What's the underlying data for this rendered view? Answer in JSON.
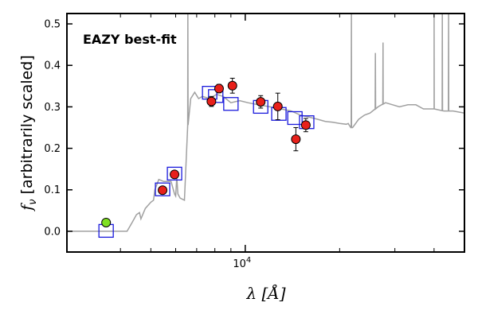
{
  "chart_data": {
    "type": "scatter",
    "title": "",
    "annotation": {
      "text": "EAZY best-fit",
      "color": "#ff0000",
      "placement": "top-left"
    },
    "xlabel": "λ [Å]",
    "ylabel_symbol": "f",
    "ylabel_sub": "ν",
    "ylabel_text": " [arbitrarily scaled]",
    "xscale": "log",
    "xlim": [
      2700,
      50000
    ],
    "ylim": [
      -0.05,
      0.525
    ],
    "yticks": [
      0.0,
      0.1,
      0.2,
      0.3,
      0.4,
      0.5
    ],
    "ytick_labels": [
      "0.0",
      "0.1",
      "0.2",
      "0.3",
      "0.4",
      "0.5"
    ],
    "xtick_label": {
      "base": "10",
      "exp": "4",
      "value": 10000
    },
    "xticks_major": [
      10000
    ],
    "xticks_minor": [
      4000,
      5000,
      6000,
      7000,
      8000,
      9000,
      20000,
      30000,
      40000
    ],
    "grid": false,
    "colors": {
      "template": "#a0a0a0",
      "observed": "#e8201a",
      "upper_limit": "#80e020",
      "model": "#1a1adc"
    },
    "template_spectrum": {
      "x": [
        2700,
        4200,
        4350,
        4500,
        4600,
        4650,
        4800,
        5000,
        5100,
        5150,
        5300,
        5500,
        5800,
        5950,
        6000,
        6050,
        6100,
        6200,
        6400,
        6550,
        6700,
        6900,
        7100,
        7300,
        7700,
        8100,
        8500,
        9000,
        9600,
        10200,
        11000,
        12000,
        13000,
        14000,
        15000,
        16000,
        17000,
        18000,
        19000,
        20000,
        21000,
        21300,
        21700,
        22000,
        23000,
        24000,
        25000,
        26500,
        28000,
        29500,
        31000,
        33000,
        35000,
        37000,
        40000,
        43000,
        46000,
        50000
      ],
      "y": [
        0.0,
        0.0,
        0.02,
        0.04,
        0.045,
        0.03,
        0.055,
        0.07,
        0.075,
        0.1,
        0.125,
        0.12,
        0.12,
        0.09,
        0.085,
        0.13,
        0.09,
        0.08,
        0.075,
        0.25,
        0.32,
        0.335,
        0.32,
        0.325,
        0.32,
        0.33,
        0.325,
        0.31,
        0.315,
        0.31,
        0.305,
        0.3,
        0.295,
        0.29,
        0.28,
        0.275,
        0.27,
        0.265,
        0.263,
        0.26,
        0.258,
        0.26,
        0.25,
        0.25,
        0.27,
        0.28,
        0.285,
        0.3,
        0.31,
        0.305,
        0.3,
        0.305,
        0.305,
        0.295,
        0.295,
        0.29,
        0.29,
        0.285
      ]
    },
    "emission_lines": [
      {
        "x": 6563,
        "peak": 0.525
      },
      {
        "x": 21800,
        "peak": 0.525
      },
      {
        "x": 26000,
        "peak": 0.43
      },
      {
        "x": 27500,
        "peak": 0.455
      },
      {
        "x": 40000,
        "peak": 0.525
      },
      {
        "x": 42500,
        "peak": 0.525
      },
      {
        "x": 44500,
        "peak": 0.525
      }
    ],
    "observed": {
      "x": [
        3600,
        5450,
        5950,
        7800,
        8250,
        9100,
        11200,
        12700,
        14500,
        15600
      ],
      "y": [
        0.021,
        0.099,
        0.137,
        0.313,
        0.344,
        0.351,
        0.312,
        0.301,
        0.222,
        0.256
      ],
      "yerr": [
        0.004,
        0.006,
        0.006,
        0.012,
        0.01,
        0.018,
        0.015,
        0.032,
        0.028,
        0.016
      ]
    },
    "model_fluxes": {
      "x": [
        3600,
        5450,
        5950,
        7700,
        8050,
        9000,
        11200,
        12800,
        14400,
        15700
      ],
      "y": [
        0.001,
        0.101,
        0.139,
        0.334,
        0.326,
        0.307,
        0.3,
        0.283,
        0.273,
        0.263
      ]
    }
  }
}
